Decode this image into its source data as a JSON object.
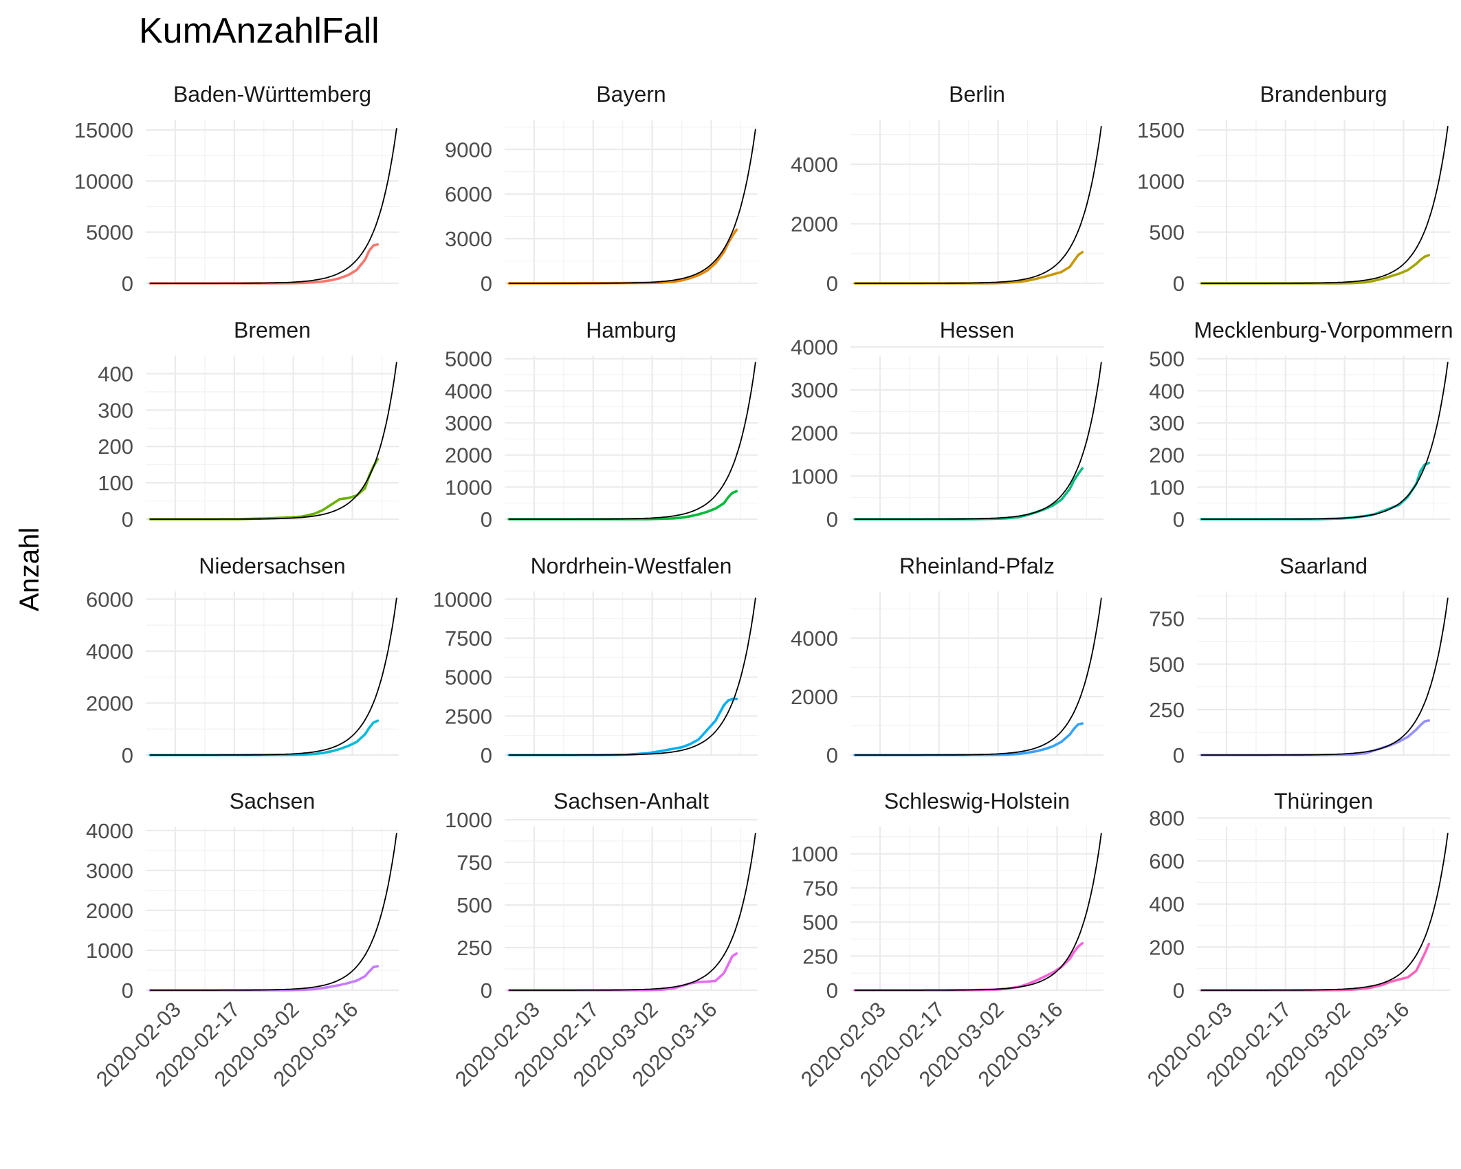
{
  "chart_data": {
    "type": "line",
    "title": "KumAnzahlFall",
    "ylabel": "Anzahl",
    "xlabel": "",
    "x_tick_labels": [
      "2020-02-03",
      "2020-02-17",
      "2020-03-02",
      "2020-03-16"
    ],
    "x_tick_dates": [
      "2020-02-03",
      "2020-02-17",
      "2020-03-02",
      "2020-03-16"
    ],
    "x_range": [
      "2020-01-27",
      "2020-03-27"
    ],
    "observed_dates": [
      "2020-01-28",
      "2020-02-04",
      "2020-02-11",
      "2020-02-18",
      "2020-02-25",
      "2020-03-01",
      "2020-03-04",
      "2020-03-07",
      "2020-03-09",
      "2020-03-11",
      "2020-03-13",
      "2020-03-15",
      "2020-03-17",
      "2020-03-19",
      "2020-03-20",
      "2020-03-21",
      "2020-03-22"
    ],
    "fit_line": "black exponential trend",
    "facets": [
      {
        "name": "Baden-Württemberg",
        "color": "#F8766D",
        "ylim": [
          0,
          16000
        ],
        "yticks": [
          0,
          5000,
          10000,
          15000
        ],
        "fit_end": 15800,
        "values": [
          0,
          0,
          0,
          0,
          5,
          15,
          40,
          100,
          180,
          300,
          500,
          800,
          1300,
          2300,
          3200,
          3700,
          3800
        ]
      },
      {
        "name": "Bayern",
        "color": "#E58700",
        "ylim": [
          0,
          11000
        ],
        "yticks": [
          0,
          3000,
          6000,
          9000
        ],
        "fit_end": 10800,
        "values": [
          0,
          0,
          5,
          10,
          20,
          30,
          50,
          100,
          200,
          350,
          550,
          850,
          1350,
          2100,
          2700,
          3200,
          3600
        ]
      },
      {
        "name": "Berlin",
        "color": "#C99800",
        "ylim": [
          0,
          5500
        ],
        "yticks": [
          0,
          2000,
          4000
        ],
        "fit_end": 5500,
        "values": [
          0,
          0,
          0,
          0,
          0,
          5,
          20,
          50,
          90,
          150,
          220,
          300,
          380,
          550,
          750,
          950,
          1050
        ]
      },
      {
        "name": "Brandenburg",
        "color": "#A3A500",
        "ylim": [
          0,
          1600
        ],
        "yticks": [
          0,
          500,
          1000,
          1500
        ],
        "fit_end": 1600,
        "values": [
          0,
          0,
          0,
          0,
          0,
          1,
          3,
          10,
          25,
          45,
          70,
          95,
          130,
          190,
          230,
          260,
          275
        ]
      },
      {
        "name": "Bremen",
        "color": "#6BB100",
        "ylim": [
          0,
          450
        ],
        "yticks": [
          0,
          100,
          200,
          300,
          400
        ],
        "fit_end": 450,
        "values": [
          0,
          0,
          0,
          0,
          2,
          5,
          7,
          15,
          25,
          40,
          55,
          58,
          65,
          85,
          120,
          145,
          165
        ]
      },
      {
        "name": "Hamburg",
        "color": "#00BA38",
        "ylim": [
          0,
          5100
        ],
        "yticks": [
          0,
          1000,
          2000,
          3000,
          4000,
          5000
        ],
        "fit_end": 5100,
        "values": [
          0,
          0,
          0,
          0,
          1,
          3,
          10,
          25,
          50,
          90,
          150,
          230,
          330,
          500,
          680,
          820,
          870
        ]
      },
      {
        "name": "Hessen",
        "color": "#00BF7D",
        "ylim": [
          0,
          3800
        ],
        "yticks": [
          0,
          1000,
          2000,
          3000,
          4000
        ],
        "fit_end": 3800,
        "values": [
          0,
          0,
          0,
          0,
          2,
          8,
          20,
          50,
          100,
          160,
          230,
          320,
          450,
          700,
          900,
          1050,
          1180
        ]
      },
      {
        "name": "Mecklenburg-Vorpommern",
        "color": "#00C0AF",
        "ylim": [
          0,
          510
        ],
        "yticks": [
          0,
          100,
          200,
          300,
          400,
          500
        ],
        "fit_end": 510,
        "values": [
          0,
          0,
          0,
          0,
          0,
          2,
          5,
          10,
          15,
          25,
          35,
          45,
          70,
          110,
          150,
          170,
          175
        ]
      },
      {
        "name": "Niedersachsen",
        "color": "#00BCD8",
        "ylim": [
          0,
          6300
        ],
        "yticks": [
          0,
          2000,
          4000,
          6000
        ],
        "fit_end": 6300,
        "values": [
          0,
          0,
          0,
          0,
          2,
          5,
          15,
          40,
          80,
          140,
          230,
          350,
          500,
          800,
          1050,
          1250,
          1320
        ]
      },
      {
        "name": "Nordrhein-Westfalen",
        "color": "#00B0F6",
        "ylim": [
          0,
          10500
        ],
        "yticks": [
          0,
          2500,
          5000,
          7500,
          10000
        ],
        "fit_end": 10500,
        "values": [
          0,
          0,
          0,
          0,
          20,
          120,
          250,
          400,
          500,
          700,
          1000,
          1600,
          2200,
          3200,
          3500,
          3600,
          3600
        ]
      },
      {
        "name": "Rheinland-Pfalz",
        "color": "#35A2FF",
        "ylim": [
          0,
          5600
        ],
        "yticks": [
          0,
          2000,
          4000
        ],
        "fit_end": 5600,
        "values": [
          0,
          0,
          0,
          0,
          1,
          5,
          15,
          40,
          80,
          130,
          200,
          300,
          450,
          700,
          900,
          1050,
          1080
        ]
      },
      {
        "name": "Saarland",
        "color": "#9590FF",
        "ylim": [
          0,
          900
        ],
        "yticks": [
          0,
          250,
          500,
          750
        ],
        "fit_end": 900,
        "values": [
          0,
          0,
          0,
          0,
          0,
          1,
          3,
          10,
          25,
          40,
          55,
          75,
          100,
          140,
          165,
          185,
          190
        ]
      },
      {
        "name": "Sachsen",
        "color": "#C77CFF",
        "ylim": [
          0,
          4100
        ],
        "yticks": [
          0,
          1000,
          2000,
          3000,
          4000
        ],
        "fit_end": 4100,
        "values": [
          0,
          0,
          0,
          0,
          0,
          2,
          8,
          25,
          55,
          90,
          130,
          180,
          240,
          350,
          470,
          580,
          600
        ]
      },
      {
        "name": "Sachsen-Anhalt",
        "color": "#E76BF3",
        "ylim": [
          0,
          960
        ],
        "yticks": [
          0,
          250,
          500,
          750,
          1000
        ],
        "fit_end": 960,
        "values": [
          0,
          0,
          0,
          0,
          0,
          1,
          3,
          10,
          25,
          40,
          48,
          50,
          55,
          100,
          150,
          200,
          215
        ]
      },
      {
        "name": "Schleswig-Holstein",
        "color": "#FA62DB",
        "ylim": [
          0,
          1200
        ],
        "yticks": [
          0,
          250,
          500,
          750,
          1000
        ],
        "fit_end": 1200,
        "values": [
          0,
          0,
          0,
          0,
          1,
          4,
          10,
          25,
          45,
          70,
          100,
          130,
          170,
          230,
          280,
          320,
          345
        ]
      },
      {
        "name": "Thüringen",
        "color": "#FF62BC",
        "ylim": [
          0,
          760
        ],
        "yticks": [
          0,
          200,
          400,
          600,
          800
        ],
        "fit_end": 760,
        "values": [
          0,
          0,
          0,
          0,
          0,
          1,
          3,
          8,
          15,
          25,
          40,
          50,
          60,
          90,
          130,
          170,
          215
        ]
      }
    ]
  }
}
